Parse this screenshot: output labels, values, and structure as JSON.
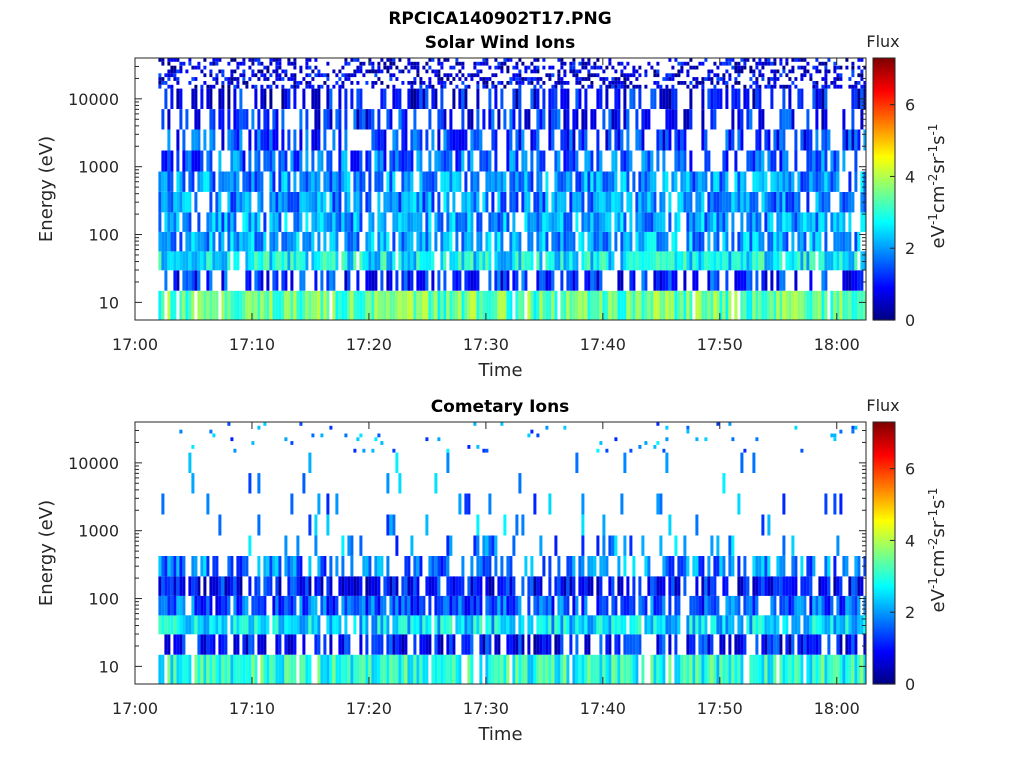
{
  "figure_title": "RPCICA140902T17.PNG",
  "chart_data": [
    {
      "type": "heatmap",
      "title": "Solar Wind Ions",
      "xlabel": "Time",
      "ylabel": "Energy (eV)",
      "x_ticks": [
        "17:00",
        "17:10",
        "17:20",
        "17:30",
        "17:40",
        "17:50",
        "18:00"
      ],
      "xlim": [
        "17:00",
        "18:02.5"
      ],
      "data_time_range": [
        "17:02",
        "18:02.5"
      ],
      "y_scale": "log",
      "y_ticks": [
        "10",
        "100",
        "1000",
        "10000"
      ],
      "ylim": [
        5.5,
        40000
      ],
      "colorbar": {
        "title": "Flux",
        "label_parts": [
          "eV",
          "-1",
          "cm",
          "-2",
          "sr",
          "-1",
          "s",
          "-1"
        ],
        "ticks": [
          "0",
          "2",
          "4",
          "6"
        ],
        "range": [
          0,
          7.3
        ],
        "colormap": "jet"
      },
      "grid": false,
      "energy_bands": [
        {
          "energy": 10,
          "level": 3.4,
          "fill": 0.95
        },
        {
          "energy": 22,
          "level": 1.2,
          "fill": 0.6
        },
        {
          "energy": 40,
          "level": 2.7,
          "fill": 0.9
        },
        {
          "energy": 80,
          "level": 2.1,
          "fill": 0.8
        },
        {
          "energy": 150,
          "level": 2.0,
          "fill": 0.8
        },
        {
          "energy": 300,
          "level": 1.9,
          "fill": 0.75
        },
        {
          "energy": 600,
          "level": 1.9,
          "fill": 0.8
        },
        {
          "energy": 1200,
          "level": 1.6,
          "fill": 0.65
        },
        {
          "energy": 2500,
          "level": 1.3,
          "fill": 0.58
        },
        {
          "energy": 5000,
          "level": 1.1,
          "fill": 0.52
        },
        {
          "energy": 10000,
          "level": 0.9,
          "fill": 0.48
        },
        {
          "energy": 20000,
          "level": 0.7,
          "fill": 0.42
        }
      ]
    },
    {
      "type": "heatmap",
      "title": "Cometary Ions",
      "xlabel": "Time",
      "ylabel": "Energy (eV)",
      "x_ticks": [
        "17:00",
        "17:10",
        "17:20",
        "17:30",
        "17:40",
        "17:50",
        "18:00"
      ],
      "xlim": [
        "17:00",
        "18:02.5"
      ],
      "data_time_range": [
        "17:02",
        "18:02.5"
      ],
      "y_scale": "log",
      "y_ticks": [
        "10",
        "100",
        "1000",
        "10000"
      ],
      "ylim": [
        5.5,
        40000
      ],
      "colorbar": {
        "title": "Flux",
        "label_parts": [
          "eV",
          "-1",
          "cm",
          "-2",
          "sr",
          "-1",
          "s",
          "-1"
        ],
        "ticks": [
          "0",
          "2",
          "4",
          "6"
        ],
        "range": [
          0,
          7.3
        ],
        "colormap": "jet"
      },
      "grid": false,
      "energy_bands": [
        {
          "energy": 10,
          "level": 3.0,
          "fill": 0.9
        },
        {
          "energy": 22,
          "level": 1.0,
          "fill": 0.7
        },
        {
          "energy": 40,
          "level": 2.5,
          "fill": 0.85
        },
        {
          "energy": 80,
          "level": 1.5,
          "fill": 0.8
        },
        {
          "energy": 150,
          "level": 1.0,
          "fill": 0.75
        },
        {
          "energy": 300,
          "level": 1.8,
          "fill": 0.55
        },
        {
          "energy": 600,
          "level": 1.9,
          "fill": 0.15
        },
        {
          "energy": 1200,
          "level": 1.9,
          "fill": 0.1
        },
        {
          "energy": 2500,
          "level": 1.9,
          "fill": 0.07
        },
        {
          "energy": 5000,
          "level": 1.9,
          "fill": 0.05
        },
        {
          "energy": 10000,
          "level": 1.9,
          "fill": 0.04
        },
        {
          "energy": 20000,
          "level": 1.9,
          "fill": 0.03
        }
      ]
    }
  ]
}
